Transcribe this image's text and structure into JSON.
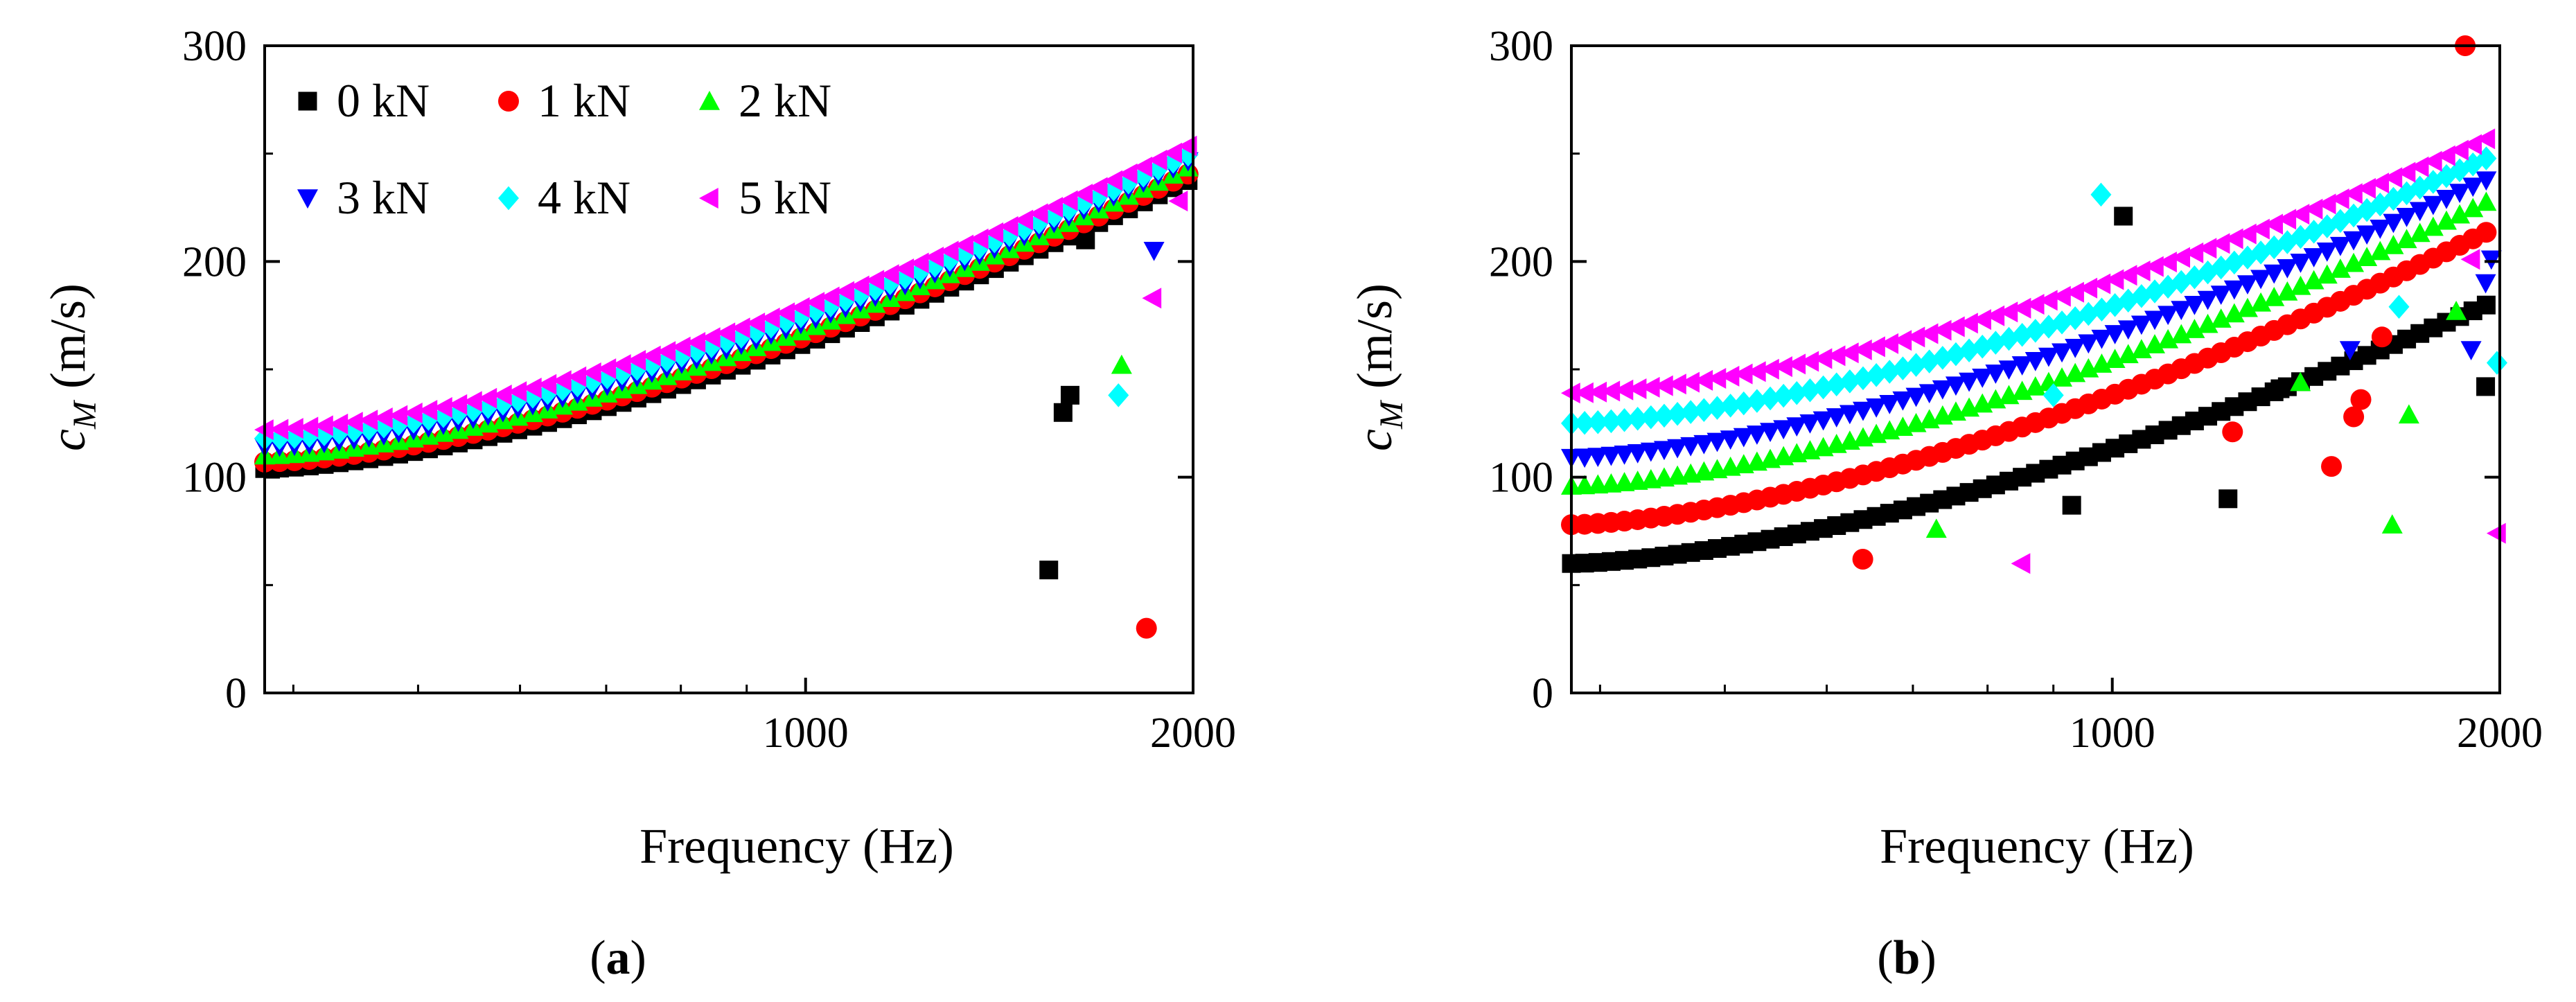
{
  "figure": {
    "panels": [
      {
        "label_open": "(",
        "label_letter": "a",
        "label_close": ")"
      },
      {
        "label_open": "(",
        "label_letter": "b",
        "label_close": ")"
      }
    ]
  },
  "chart_data": [
    {
      "type": "scatter",
      "panel": "(a)",
      "title": "",
      "xlabel": "Frequency (Hz)",
      "ylabel_main": "c",
      "ylabel_sub": "M",
      "ylabel_unit": " (m/s)",
      "xscale": "log",
      "xlim": [
        380,
        2000
      ],
      "ylim": [
        0,
        300
      ],
      "xticks": [
        {
          "value": 1000,
          "label": "1000"
        },
        {
          "value": 2000,
          "label": "2000"
        }
      ],
      "yticks": [
        {
          "value": 0,
          "label": "0"
        },
        {
          "value": 100,
          "label": "100"
        },
        {
          "value": 200,
          "label": "200"
        },
        {
          "value": 300,
          "label": "300"
        }
      ],
      "legend": {
        "position": "top-left",
        "columns": 3
      },
      "series": [
        {
          "name": "0 kN",
          "color": "#000000",
          "marker": "square",
          "curve": {
            "f0": 380,
            "f1": 1990,
            "y0": 104,
            "y1": 238,
            "step": 1.027
          },
          "outliers": [
            [
              1545,
              57
            ],
            [
              1585,
              130
            ],
            [
              1605,
              138
            ],
            [
              1650,
              210
            ]
          ]
        },
        {
          "name": "1 kN",
          "color": "#ff0000",
          "marker": "circle",
          "curve": {
            "f0": 380,
            "f1": 1990,
            "y0": 107,
            "y1": 241,
            "step": 1.027
          },
          "outliers": [
            [
              1840,
              30
            ]
          ]
        },
        {
          "name": "2 kN",
          "color": "#00ff00",
          "marker": "triangle-up",
          "curve": {
            "f0": 380,
            "f1": 1990,
            "y0": 110,
            "y1": 244,
            "step": 1.027
          },
          "outliers": [
            [
              1760,
              152
            ]
          ]
        },
        {
          "name": "3 kN",
          "color": "#0000ff",
          "marker": "triangle-down",
          "curve": {
            "f0": 380,
            "f1": 1990,
            "y0": 114,
            "y1": 247,
            "step": 1.027
          },
          "outliers": [
            [
              1865,
              205
            ]
          ]
        },
        {
          "name": "4 kN",
          "color": "#00ffff",
          "marker": "diamond",
          "curve": {
            "f0": 380,
            "f1": 1990,
            "y0": 118,
            "y1": 250,
            "step": 1.027
          },
          "outliers": [
            [
              1750,
              138
            ]
          ]
        },
        {
          "name": "5 kN",
          "color": "#ff00ff",
          "marker": "triangle-left",
          "curve": {
            "f0": 380,
            "f1": 1990,
            "y0": 122,
            "y1": 254,
            "step": 1.027
          },
          "outliers": [
            [
              1860,
              183
            ],
            [
              1950,
              228
            ]
          ]
        }
      ]
    },
    {
      "type": "scatter",
      "panel": "(b)",
      "title": "",
      "xlabel": "Frequency (Hz)",
      "ylabel_main": "c",
      "ylabel_sub": "M",
      "ylabel_unit": " (m/s)",
      "xscale": "log",
      "xlim": [
        380,
        2000
      ],
      "ylim": [
        0,
        300
      ],
      "xticks": [
        {
          "value": 1000,
          "label": "1000"
        },
        {
          "value": 2000,
          "label": "2000"
        }
      ],
      "yticks": [
        {
          "value": 0,
          "label": "0"
        },
        {
          "value": 100,
          "label": "100"
        },
        {
          "value": 200,
          "label": "200"
        },
        {
          "value": 300,
          "label": "300"
        }
      ],
      "legend": null,
      "series": [
        {
          "name": "0 kN",
          "color": "#000000",
          "marker": "square",
          "curve": {
            "f0": 380,
            "f1": 1990,
            "y0": 60,
            "y1": 182,
            "step": 1.024
          },
          "outliers": [
            [
              930,
              87
            ],
            [
              1020,
              221
            ],
            [
              1230,
              90
            ],
            [
              1350,
              141
            ],
            [
              1950,
              142
            ]
          ]
        },
        {
          "name": "1 kN",
          "color": "#ff0000",
          "marker": "circle",
          "curve": {
            "f0": 380,
            "f1": 1990,
            "y0": 78,
            "y1": 216,
            "step": 1.024
          },
          "outliers": [
            [
              640,
              62
            ],
            [
              1240,
              121
            ],
            [
              1480,
              105
            ],
            [
              1540,
              128
            ],
            [
              1560,
              136
            ],
            [
              1620,
              165
            ],
            [
              1880,
              300
            ]
          ]
        },
        {
          "name": "2 kN",
          "color": "#00ff00",
          "marker": "triangle-up",
          "curve": {
            "f0": 380,
            "f1": 1990,
            "y0": 96,
            "y1": 230,
            "step": 1.024
          },
          "outliers": [
            [
              730,
              76
            ],
            [
              1400,
              144
            ],
            [
              1650,
              78
            ],
            [
              1700,
              129
            ],
            [
              1850,
              177
            ]
          ]
        },
        {
          "name": "3 kN",
          "color": "#0000ff",
          "marker": "triangle-down",
          "curve": {
            "f0": 380,
            "f1": 1990,
            "y0": 109,
            "y1": 240,
            "step": 1.024
          },
          "outliers": [
            [
              1530,
              159
            ],
            [
              1900,
              159
            ],
            [
              1950,
              190
            ],
            [
              1970,
              201
            ]
          ]
        },
        {
          "name": "4 kN",
          "color": "#00ffff",
          "marker": "diamond",
          "curve": {
            "f0": 380,
            "f1": 1990,
            "y0": 125,
            "y1": 250,
            "step": 1.024
          },
          "outliers": [
            [
              900,
              138
            ],
            [
              980,
              231
            ],
            [
              1670,
              179
            ],
            [
              1990,
              153
            ]
          ]
        },
        {
          "name": "5 kN",
          "color": "#ff00ff",
          "marker": "triangle-left",
          "curve": {
            "f0": 380,
            "f1": 1990,
            "y0": 139,
            "y1": 259,
            "step": 1.024
          },
          "outliers": [
            [
              850,
              60
            ],
            [
              1900,
              201
            ],
            [
              1990,
              74
            ]
          ]
        }
      ]
    }
  ]
}
